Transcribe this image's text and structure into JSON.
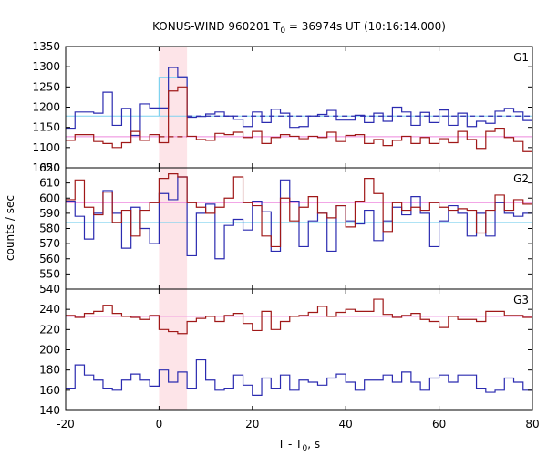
{
  "chart_data": {
    "type": "line",
    "title": "KONUS-WIND 960201 T",
    "title_sub": "0",
    "title_rest": " = 36974s UT (10:16:14.000)",
    "xlabel": "T - T",
    "xlabel_sub": "0",
    "xlabel_rest": ", s",
    "ylabel": "counts / sec",
    "xlim": [
      -20,
      80
    ],
    "x_ticks": [
      -20,
      0,
      20,
      40,
      60,
      80
    ],
    "highlight_interval": [
      0,
      6
    ],
    "colors": {
      "blue": "#2b2bb0",
      "red": "#a01818",
      "cyan": "#7fd2ef",
      "pink": "#ee88dd",
      "highlight": "#fde4e8"
    },
    "panels": [
      {
        "name": "G1",
        "ylim": [
          1050,
          1350
        ],
        "y_ticks": [
          1050,
          1100,
          1150,
          1200,
          1250,
          1300,
          1350
        ],
        "bin_edges": [
          -20,
          -18,
          -14,
          -12,
          -10,
          -8,
          -6,
          -4,
          -2,
          0,
          2,
          4,
          6,
          8,
          10,
          12,
          14,
          16,
          18,
          20,
          22,
          24,
          26,
          28,
          30,
          32,
          34,
          36,
          38,
          40,
          42,
          44,
          46,
          48,
          50,
          52,
          54,
          56,
          58,
          60,
          62,
          64,
          66,
          68,
          70,
          72,
          74,
          76,
          78,
          80
        ],
        "series": [
          {
            "color_key": "blue",
            "values": [
              1148,
              1188,
              1185,
              1237,
              1155,
              1197,
              1130,
              1208,
              1198,
              1198,
              1298,
              1275,
              1175,
              1177,
              1183,
              1188,
              1178,
              1170,
              1152,
              1188,
              1162,
              1195,
              1185,
              1150,
              1152,
              1178,
              1182,
              1192,
              1168,
              1168,
              1180,
              1162,
              1185,
              1165,
              1200,
              1188,
              1155,
              1187,
              1162,
              1193,
              1155,
              1185,
              1152,
              1165,
              1160,
              1190,
              1197,
              1188,
              1167
            ]
          },
          {
            "color_key": "red",
            "values": [
              1118,
              1132,
              1115,
              1110,
              1100,
              1112,
              1140,
              1118,
              1132,
              1112,
              1240,
              1250,
              1128,
              1120,
              1118,
              1135,
              1132,
              1138,
              1125,
              1140,
              1110,
              1125,
              1132,
              1128,
              1122,
              1128,
              1125,
              1138,
              1115,
              1130,
              1132,
              1110,
              1120,
              1105,
              1118,
              1128,
              1110,
              1125,
              1110,
              1122,
              1112,
              1140,
              1120,
              1098,
              1140,
              1148,
              1125,
              1115,
              1090
            ]
          }
        ],
        "backgrounds": [
          {
            "color_key": "cyan",
            "value": 1178
          },
          {
            "color_key": "pink",
            "value": 1127
          }
        ],
        "dashed": [
          {
            "color_key": "blue",
            "value": 1178,
            "x": [
              6,
              80
            ]
          },
          {
            "color_key": "red",
            "value": 1127,
            "x": [
              0,
              6
            ]
          }
        ],
        "intervals": [
          {
            "color_key": "cyan",
            "x": [
              0,
              6
            ],
            "top": 1274,
            "base": 1178
          }
        ]
      },
      {
        "name": "G2",
        "ylim": [
          540,
          620
        ],
        "y_ticks": [
          540,
          550,
          560,
          570,
          580,
          590,
          600,
          610,
          620
        ],
        "bin_edges": [
          -20,
          -18,
          -16,
          -14,
          -12,
          -10,
          -8,
          -6,
          -4,
          -2,
          0,
          2,
          4,
          6,
          8,
          10,
          12,
          14,
          16,
          18,
          20,
          22,
          24,
          26,
          28,
          30,
          32,
          34,
          36,
          38,
          40,
          42,
          44,
          46,
          48,
          50,
          52,
          54,
          56,
          58,
          60,
          62,
          64,
          66,
          68,
          70,
          72,
          74,
          76,
          78,
          80
        ],
        "series": [
          {
            "color_key": "blue",
            "values": [
              598,
              588,
              573,
              590,
              605,
              590,
              567,
              594,
              580,
              570,
              603,
              599,
              614,
              562,
              590,
              596,
              560,
              582,
              586,
              579,
              598,
              591,
              565,
              612,
              598,
              568,
              585,
              590,
              565,
              595,
              585,
              583,
              592,
              572,
              585,
              594,
              589,
              601,
              590,
              568,
              585,
              595,
              590,
              575,
              590,
              575,
              597,
              590,
              588,
              590
            ]
          },
          {
            "color_key": "red",
            "values": [
              599,
              612,
              594,
              589,
              604,
              584,
              592,
              575,
              592,
              597,
              613,
              616,
              614,
              597,
              594,
              590,
              594,
              600,
              614,
              597,
              595,
              575,
              568,
              600,
              585,
              594,
              601,
              590,
              587,
              595,
              581,
              598,
              613,
              603,
              578,
              597,
              592,
              594,
              592,
              597,
              594,
              592,
              593,
              592,
              577,
              592,
              602,
              592,
              599,
              596
            ]
          }
        ],
        "backgrounds": [
          {
            "color_key": "cyan",
            "value": 584
          },
          {
            "color_key": "pink",
            "value": 597
          }
        ],
        "dashed": [],
        "intervals": []
      },
      {
        "name": "G3",
        "ylim": [
          140,
          260
        ],
        "y_ticks": [
          140,
          160,
          180,
          200,
          220,
          240
        ],
        "bin_edges": [
          -20,
          -18,
          -16,
          -14,
          -12,
          -10,
          -8,
          -6,
          -4,
          -2,
          0,
          2,
          4,
          6,
          8,
          10,
          12,
          14,
          16,
          18,
          20,
          22,
          24,
          26,
          28,
          30,
          32,
          34,
          36,
          38,
          40,
          42,
          44,
          46,
          48,
          50,
          52,
          54,
          56,
          58,
          60,
          62,
          64,
          66,
          68,
          70,
          72,
          74,
          76,
          78,
          80
        ],
        "series": [
          {
            "color_key": "blue",
            "values": [
              162,
              185,
              175,
              170,
              162,
              160,
              170,
              176,
              170,
              164,
              180,
              168,
              178,
              162,
              190,
              170,
              160,
              162,
              175,
              165,
              155,
              172,
              162,
              175,
              160,
              170,
              168,
              165,
              172,
              176,
              168,
              160,
              170,
              170,
              175,
              168,
              178,
              168,
              160,
              172,
              175,
              168,
              175,
              175,
              162,
              158,
              160,
              172,
              168,
              160
            ]
          },
          {
            "color_key": "red",
            "values": [
              234,
              232,
              236,
              238,
              244,
              236,
              233,
              232,
              230,
              234,
              220,
              218,
              216,
              228,
              231,
              233,
              228,
              234,
              236,
              226,
              219,
              238,
              220,
              228,
              233,
              234,
              237,
              243,
              233,
              237,
              240,
              238,
              238,
              250,
              235,
              232,
              234,
              236,
              230,
              228,
              222,
              233,
              230,
              230,
              228,
              238,
              238,
              234,
              234,
              232
            ]
          }
        ],
        "backgrounds": [
          {
            "color_key": "cyan",
            "value": 172
          },
          {
            "color_key": "pink",
            "value": 233
          }
        ],
        "dashed": [],
        "intervals": []
      }
    ]
  }
}
